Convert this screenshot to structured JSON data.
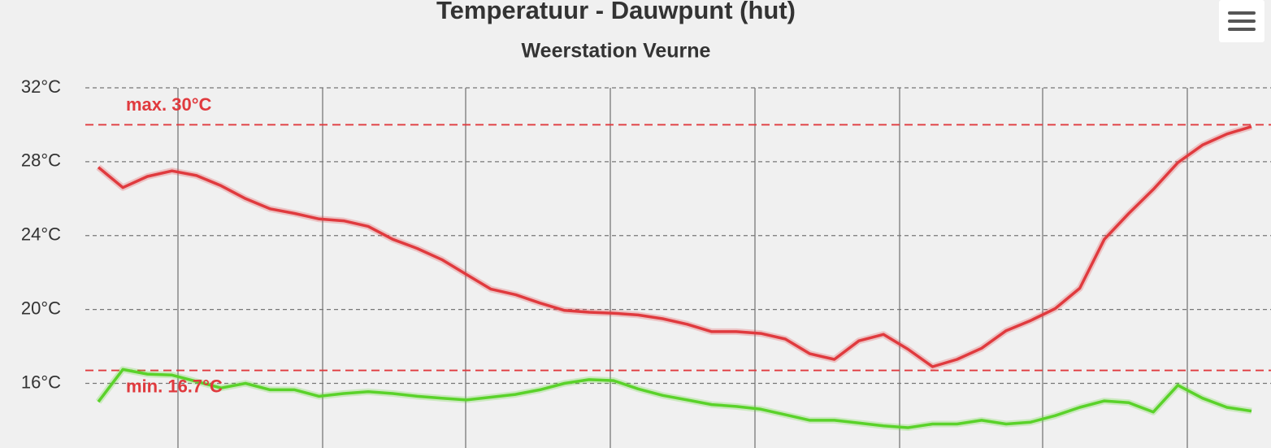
{
  "chart_data": {
    "type": "line",
    "title": "Temperatuur - Dauwpunt (hut)",
    "subtitle": "Weerstation Veurne",
    "categories": [
      null,
      null,
      null,
      null,
      null,
      null,
      null,
      null,
      null,
      null,
      null,
      null,
      null,
      null,
      null,
      null,
      null,
      null,
      null,
      null,
      null,
      null,
      null,
      null,
      null,
      null,
      null,
      null,
      null,
      null,
      null,
      null,
      null,
      null,
      null,
      null,
      null,
      null,
      null,
      null,
      null,
      null,
      null,
      null,
      null,
      null,
      null,
      null
    ],
    "series": [
      {
        "color": "#e03a3e",
        "values": [
          27.7,
          26.6,
          27.2,
          27.5,
          27.25,
          26.7,
          26.0,
          25.45,
          25.2,
          24.9,
          24.8,
          24.5,
          23.8,
          23.3,
          22.7,
          21.9,
          21.1,
          20.8,
          20.35,
          19.95,
          19.85,
          19.8,
          19.7,
          19.5,
          19.2,
          18.8,
          18.8,
          18.7,
          18.4,
          17.6,
          17.3,
          18.3,
          18.65,
          17.85,
          16.9,
          17.3,
          17.9,
          18.85,
          19.4,
          20.05,
          21.15,
          23.8,
          25.2,
          26.5,
          27.95,
          28.9,
          29.5,
          29.9
        ]
      },
      {
        "color": "#5ad22a",
        "values": [
          15.0,
          16.75,
          16.5,
          16.45,
          16.1,
          15.75,
          16.0,
          15.65,
          15.65,
          15.3,
          15.45,
          15.55,
          15.45,
          15.3,
          15.2,
          15.1,
          15.25,
          15.4,
          15.65,
          16.0,
          16.2,
          16.15,
          15.7,
          15.35,
          15.1,
          14.85,
          14.75,
          14.6,
          14.3,
          14.0,
          14.0,
          13.85,
          13.7,
          13.6,
          13.8,
          13.8,
          14.0,
          13.8,
          13.9,
          14.25,
          14.7,
          15.05,
          14.95,
          14.45,
          15.9,
          15.2,
          14.7,
          14.5
        ]
      }
    ],
    "ylim": [
      12.5,
      32
    ],
    "yticks": [
      {
        "value": 16,
        "label": "16°C"
      },
      {
        "value": 20,
        "label": "20°C"
      },
      {
        "value": 24,
        "label": "24°C"
      },
      {
        "value": 28,
        "label": "28°C"
      },
      {
        "value": 32,
        "label": "32°C"
      }
    ],
    "grid": true,
    "plot_lines": [
      {
        "value": 30,
        "label": "max. 30°C",
        "color": "#e03a3e"
      },
      {
        "value": 16.7,
        "label": "min. 16.7°C",
        "color": "#e03a3e"
      }
    ]
  }
}
